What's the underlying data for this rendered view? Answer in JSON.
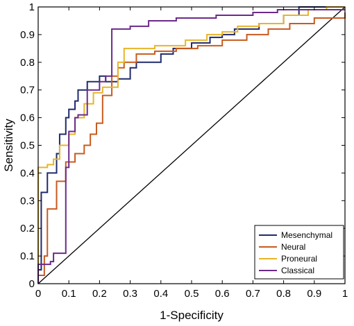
{
  "chart_data": {
    "type": "line",
    "title": "",
    "xlabel": "1-Specificity",
    "ylabel": "Sensitivity",
    "xlim": [
      0,
      1
    ],
    "ylim": [
      0,
      1
    ],
    "grid": false,
    "legend_position": "bottom-right",
    "x_ticks": [
      {
        "value": 0,
        "label": "0"
      },
      {
        "value": 0.1,
        "label": "0.1"
      },
      {
        "value": 0.2,
        "label": "0.2"
      },
      {
        "value": 0.3,
        "label": "0.3"
      },
      {
        "value": 0.4,
        "label": "0.4"
      },
      {
        "value": 0.5,
        "label": "0.5"
      },
      {
        "value": 0.6,
        "label": "0.6"
      },
      {
        "value": 0.7,
        "label": "0.7"
      },
      {
        "value": 0.8,
        "label": "0.8"
      },
      {
        "value": 0.9,
        "label": "0.9"
      },
      {
        "value": 1,
        "label": "1"
      }
    ],
    "y_ticks": [
      {
        "value": 0,
        "label": "0"
      },
      {
        "value": 0.1,
        "label": "0.1"
      },
      {
        "value": 0.2,
        "label": "0.2"
      },
      {
        "value": 0.3,
        "label": "0.3"
      },
      {
        "value": 0.4,
        "label": "0.4"
      },
      {
        "value": 0.5,
        "label": "0.5"
      },
      {
        "value": 0.6,
        "label": "0.6"
      },
      {
        "value": 0.7,
        "label": "0.7"
      },
      {
        "value": 0.8,
        "label": "0.8"
      },
      {
        "value": 0.9,
        "label": "0.9"
      },
      {
        "value": 1,
        "label": "1"
      }
    ],
    "reference_line": {
      "x": [
        0,
        1
      ],
      "y": [
        0,
        1
      ],
      "color": "#000000"
    },
    "series": [
      {
        "name": "Mesenchymal",
        "color": "#1f2a6b",
        "x": [
          0,
          0,
          0.01,
          0.01,
          0.03,
          0.03,
          0.06,
          0.06,
          0.07,
          0.07,
          0.09,
          0.09,
          0.1,
          0.1,
          0.12,
          0.12,
          0.13,
          0.13,
          0.16,
          0.16,
          0.2,
          0.2,
          0.22,
          0.22,
          0.26,
          0.26,
          0.3,
          0.3,
          0.32,
          0.32,
          0.4,
          0.4,
          0.44,
          0.44,
          0.5,
          0.5,
          0.56,
          0.56,
          0.6,
          0.6,
          0.64,
          0.64,
          0.72,
          0.72,
          0.8,
          0.8,
          0.85,
          0.85,
          0.9,
          0.9,
          1
        ],
        "y": [
          0,
          0.05,
          0.05,
          0.33,
          0.33,
          0.4,
          0.4,
          0.47,
          0.47,
          0.54,
          0.54,
          0.6,
          0.6,
          0.63,
          0.63,
          0.66,
          0.66,
          0.7,
          0.7,
          0.73,
          0.73,
          0.75,
          0.75,
          0.73,
          0.73,
          0.74,
          0.74,
          0.78,
          0.78,
          0.8,
          0.8,
          0.83,
          0.83,
          0.85,
          0.85,
          0.87,
          0.87,
          0.89,
          0.89,
          0.9,
          0.9,
          0.92,
          0.92,
          0.94,
          0.94,
          0.97,
          0.97,
          1,
          1,
          1,
          1
        ]
      },
      {
        "name": "Neural",
        "color": "#c85a1e",
        "x": [
          0,
          0,
          0.02,
          0.02,
          0.03,
          0.03,
          0.06,
          0.06,
          0.09,
          0.09,
          0.12,
          0.12,
          0.15,
          0.15,
          0.17,
          0.17,
          0.19,
          0.19,
          0.21,
          0.21,
          0.24,
          0.24,
          0.26,
          0.26,
          0.28,
          0.28,
          0.32,
          0.32,
          0.38,
          0.38,
          0.45,
          0.45,
          0.52,
          0.52,
          0.6,
          0.6,
          0.68,
          0.68,
          0.75,
          0.75,
          0.82,
          0.82,
          0.9,
          0.9,
          1,
          1
        ],
        "y": [
          0,
          0.03,
          0.03,
          0.1,
          0.1,
          0.27,
          0.27,
          0.37,
          0.37,
          0.44,
          0.44,
          0.47,
          0.47,
          0.5,
          0.5,
          0.54,
          0.54,
          0.58,
          0.58,
          0.68,
          0.68,
          0.75,
          0.75,
          0.78,
          0.78,
          0.8,
          0.8,
          0.83,
          0.83,
          0.84,
          0.84,
          0.85,
          0.85,
          0.86,
          0.86,
          0.88,
          0.88,
          0.9,
          0.9,
          0.92,
          0.92,
          0.94,
          0.94,
          0.96,
          0.96,
          0.98
        ]
      },
      {
        "name": "Proneural",
        "color": "#e8b428",
        "x": [
          0,
          0,
          0.03,
          0.03,
          0.05,
          0.05,
          0.07,
          0.07,
          0.1,
          0.1,
          0.12,
          0.12,
          0.15,
          0.15,
          0.18,
          0.18,
          0.21,
          0.21,
          0.26,
          0.26,
          0.28,
          0.28,
          0.38,
          0.38,
          0.48,
          0.48,
          0.55,
          0.55,
          0.6,
          0.6,
          0.65,
          0.65,
          0.72,
          0.72,
          0.8,
          0.8,
          0.88,
          0.88,
          0.94,
          0.94,
          1
        ],
        "y": [
          0,
          0.42,
          0.42,
          0.43,
          0.43,
          0.45,
          0.45,
          0.5,
          0.5,
          0.54,
          0.54,
          0.6,
          0.6,
          0.65,
          0.65,
          0.69,
          0.69,
          0.71,
          0.71,
          0.8,
          0.8,
          0.85,
          0.85,
          0.86,
          0.86,
          0.88,
          0.88,
          0.9,
          0.9,
          0.91,
          0.91,
          0.93,
          0.93,
          0.94,
          0.94,
          0.97,
          0.97,
          0.99,
          0.99,
          1,
          1
        ]
      },
      {
        "name": "Classical",
        "color": "#6a2a8a",
        "x": [
          0,
          0,
          0.04,
          0.04,
          0.05,
          0.05,
          0.09,
          0.09,
          0.1,
          0.1,
          0.12,
          0.12,
          0.13,
          0.13,
          0.16,
          0.16,
          0.2,
          0.2,
          0.22,
          0.22,
          0.24,
          0.24,
          0.3,
          0.3,
          0.36,
          0.36,
          0.45,
          0.45,
          0.58,
          0.58,
          0.7,
          0.7,
          0.78,
          0.78,
          1
        ],
        "y": [
          0,
          0.07,
          0.07,
          0.08,
          0.08,
          0.11,
          0.11,
          0.42,
          0.42,
          0.55,
          0.55,
          0.6,
          0.6,
          0.61,
          0.61,
          0.7,
          0.7,
          0.73,
          0.73,
          0.75,
          0.75,
          0.92,
          0.92,
          0.93,
          0.93,
          0.95,
          0.95,
          0.96,
          0.96,
          0.97,
          0.97,
          0.98,
          0.98,
          0.99,
          0.99
        ]
      }
    ]
  }
}
